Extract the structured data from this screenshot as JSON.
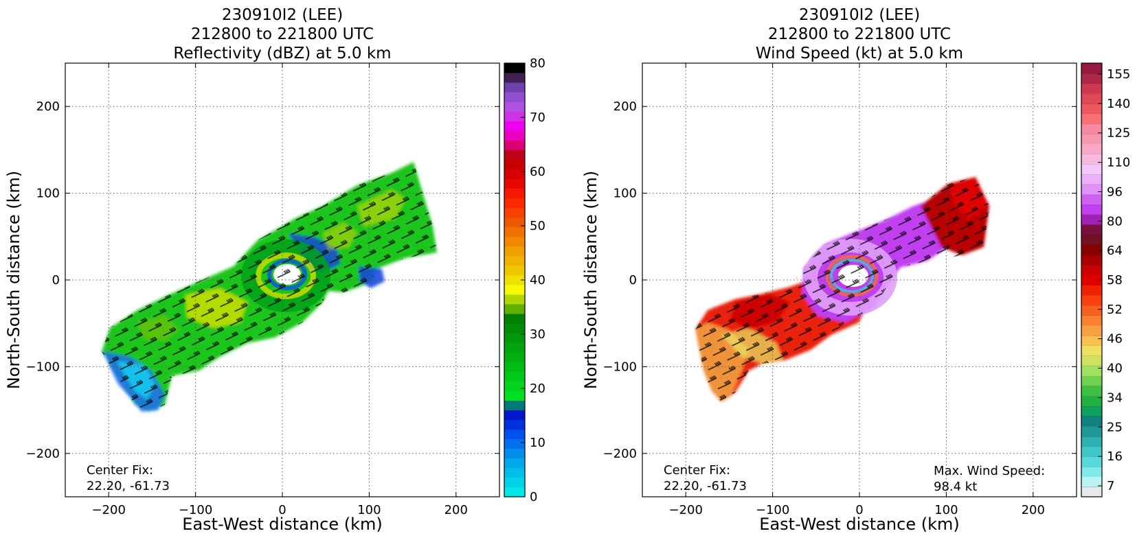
{
  "chart_data": [
    {
      "type": "heatmap",
      "title": [
        "230910I2 (LEE)",
        "212800 to 221800 UTC",
        "Reflectivity (dBZ) at 5.0 km"
      ],
      "xlabel": "East-West distance (km)",
      "ylabel": "North-South distance (km)",
      "xlim": [
        -250,
        250
      ],
      "ylim": [
        -250,
        250
      ],
      "x_ticks": [
        -200,
        -100,
        0,
        100,
        200
      ],
      "y_ticks": [
        200,
        100,
        0,
        -100,
        -200
      ],
      "x_tick_labels": [
        "−200",
        "−100",
        "0",
        "100",
        "200"
      ],
      "y_tick_labels": [
        "200",
        "100",
        "0",
        "−100",
        "−200"
      ],
      "grid": true,
      "annotation": [
        "Center Fix:",
        "22.20, -61.73"
      ],
      "colorbar": {
        "min": 0,
        "max": 80,
        "tick_labels": [
          "80",
          "70",
          "60",
          "50",
          "40",
          "30",
          "20",
          "10",
          "0"
        ],
        "colors": [
          "#00e8e8",
          "#00d4e8",
          "#00bfe8",
          "#00a8ec",
          "#0090ec",
          "#0070ee",
          "#0050ee",
          "#0030e0",
          "#0018c8",
          "#007878",
          "#00e020",
          "#00d41c",
          "#00c818",
          "#00bc14",
          "#00b010",
          "#00a40c",
          "#009808",
          "#008c04",
          "#008000",
          "#60b000",
          "#b0d800",
          "#f8f800",
          "#f0e000",
          "#f0c800",
          "#f0b400",
          "#f0a000",
          "#f08800",
          "#f07000",
          "#f05800",
          "#f84000",
          "#fc2800",
          "#f81800",
          "#e80800",
          "#d80000",
          "#c80000",
          "#c00018",
          "#dc0070",
          "#f000c0",
          "#f000f0",
          "#d030e8",
          "#b050e0",
          "#9050d0",
          "#7040b0",
          "#402050",
          "#000000"
        ]
      },
      "field": "reflectivity"
    },
    {
      "type": "heatmap",
      "title": [
        "230910I2 (LEE)",
        "212800 to 221800 UTC",
        "Wind Speed (kt) at 5.0 km"
      ],
      "xlabel": "East-West distance (km)",
      "ylabel": "North-South distance (km)",
      "xlim": [
        -250,
        250
      ],
      "ylim": [
        -250,
        250
      ],
      "x_ticks": [
        -200,
        -100,
        0,
        100,
        200
      ],
      "y_ticks": [
        200,
        100,
        0,
        -100,
        -200
      ],
      "x_tick_labels": [
        "−200",
        "−100",
        "0",
        "100",
        "200"
      ],
      "y_tick_labels": [
        "200",
        "100",
        "0",
        "−100",
        "−200"
      ],
      "grid": true,
      "annotation": [
        "Center Fix:",
        "22.20, -61.73"
      ],
      "annotation_right": [
        "Max. Wind Speed:",
        "98.4 kt"
      ],
      "max_wind_speed_kt": 98.4,
      "colorbar": {
        "tick_labels": [
          "155",
          "140",
          "125",
          "110",
          "96",
          "80",
          "64",
          "58",
          "52",
          "46",
          "40",
          "34",
          "25",
          "16",
          "7"
        ],
        "colors": [
          "#e8e8e8",
          "#b8f4f4",
          "#80eaea",
          "#58dada",
          "#40c8c8",
          "#30b0b0",
          "#209898",
          "#108080",
          "#10a060",
          "#20b040",
          "#40c040",
          "#70d050",
          "#a0e060",
          "#d0e060",
          "#f0e060",
          "#f8c050",
          "#f8a040",
          "#f88030",
          "#f86020",
          "#f84010",
          "#f02000",
          "#e00000",
          "#c80000",
          "#a80000",
          "#880000",
          "#701020",
          "#7a1040",
          "#a020b0",
          "#c040f0",
          "#d060f0",
          "#e090f8",
          "#ecb0f8",
          "#f4c8f8",
          "#f8b8e0",
          "#f8a8c8",
          "#f898b0",
          "#f888a0",
          "#f87078",
          "#f05860",
          "#e04858",
          "#d03850",
          "#b02848",
          "#981840"
        ]
      },
      "field": "wind_speed"
    }
  ]
}
